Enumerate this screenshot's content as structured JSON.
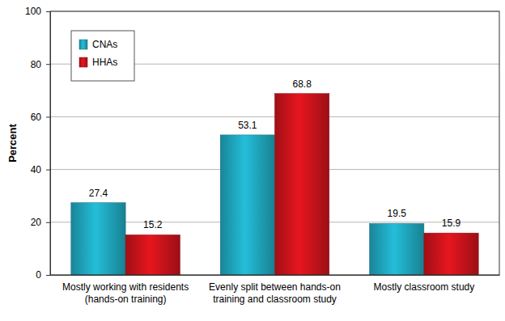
{
  "chart_data": {
    "type": "bar",
    "categories": [
      "Mostly working with residents\n(hands-on training)",
      "Evenly split between hands-on\ntraining and classroom study",
      "Mostly classroom study"
    ],
    "series": [
      {
        "name": "CNAs",
        "color": "#1fa5bc",
        "values": [
          27.4,
          53.1,
          19.5
        ]
      },
      {
        "name": "HHAs",
        "color": "#c8131b",
        "values": [
          15.2,
          68.8,
          15.9
        ]
      }
    ],
    "y_label": "Percent",
    "ylim": [
      0,
      100
    ],
    "yticks": [
      0,
      20,
      40,
      60,
      80,
      100
    ],
    "grid": true,
    "legend": "top-left",
    "data_labels": true
  }
}
